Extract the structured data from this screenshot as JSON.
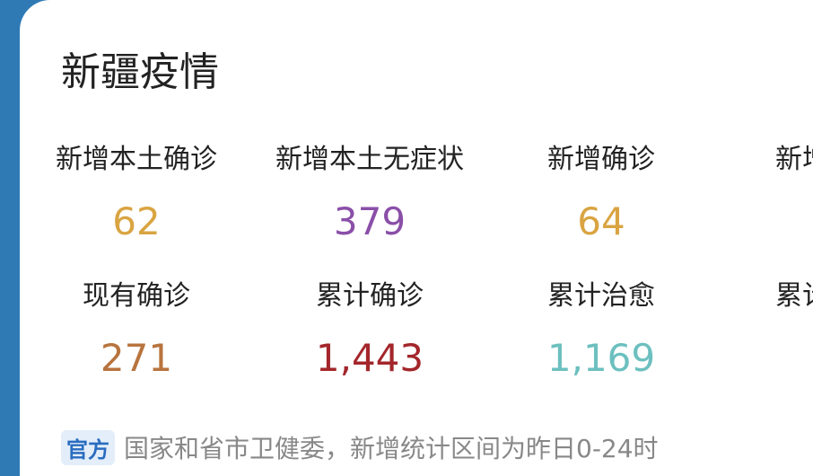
{
  "title": "新疆疫情",
  "stats": [
    {
      "label": "新增本土确诊",
      "value": "62",
      "color": "#d9a441"
    },
    {
      "label": "新增本土无症状",
      "value": "379",
      "color": "#8a4fa8"
    },
    {
      "label": "新增确诊",
      "value": "64",
      "color": "#d9a441"
    },
    {
      "label": "现有确诊",
      "value": "271",
      "color": "#b8743e"
    },
    {
      "label": "累计确诊",
      "value": "1,443",
      "color": "#a3262b"
    },
    {
      "label": "累计治愈",
      "value": "1,169",
      "color": "#6cc0bf"
    }
  ],
  "truncated": [
    "新增",
    "累计"
  ],
  "footer": {
    "badge": "官方",
    "text": "国家和省市卫健委，新增统计区间为昨日0-24时"
  }
}
